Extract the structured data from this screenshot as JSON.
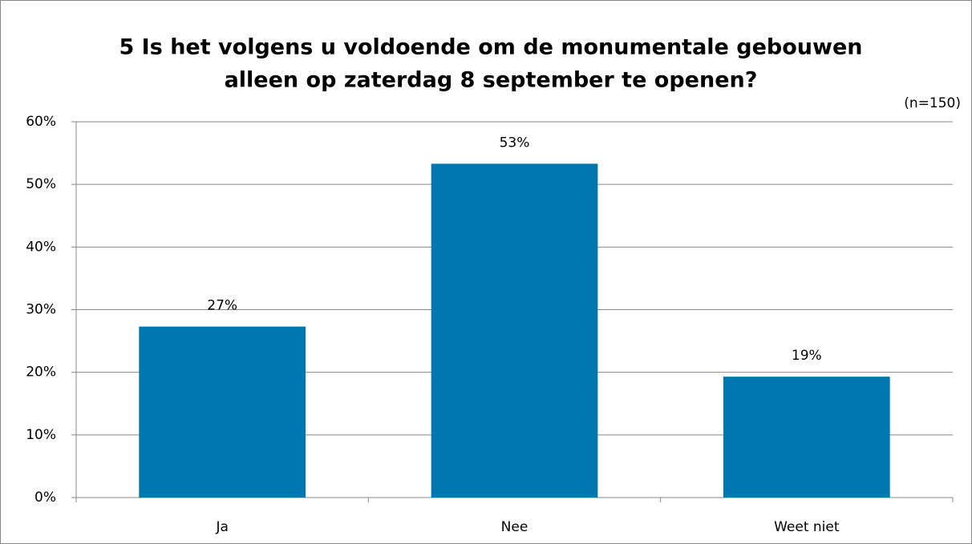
{
  "chart_data": {
    "type": "bar",
    "title": [
      "5 Is het volgens u voldoende om de monumentale gebouwen",
      "alleen op zaterdag 8 september te openen?"
    ],
    "annotation": "(n=150)",
    "categories": [
      "Ja",
      "Nee",
      "Weet niet"
    ],
    "values": [
      27.3,
      53.3,
      19.3
    ],
    "value_labels": [
      "27%",
      "53%",
      "19%"
    ],
    "color": "#0077ae",
    "ylim": [
      0,
      60
    ],
    "yticks": [
      {
        "value": 0,
        "label": "0%"
      },
      {
        "value": 10,
        "label": "10%"
      },
      {
        "value": 20,
        "label": "20%"
      },
      {
        "value": 30,
        "label": "30%"
      },
      {
        "value": 40,
        "label": "40%"
      },
      {
        "value": 50,
        "label": "50%"
      },
      {
        "value": 60,
        "label": "60%"
      }
    ],
    "grid": true
  }
}
